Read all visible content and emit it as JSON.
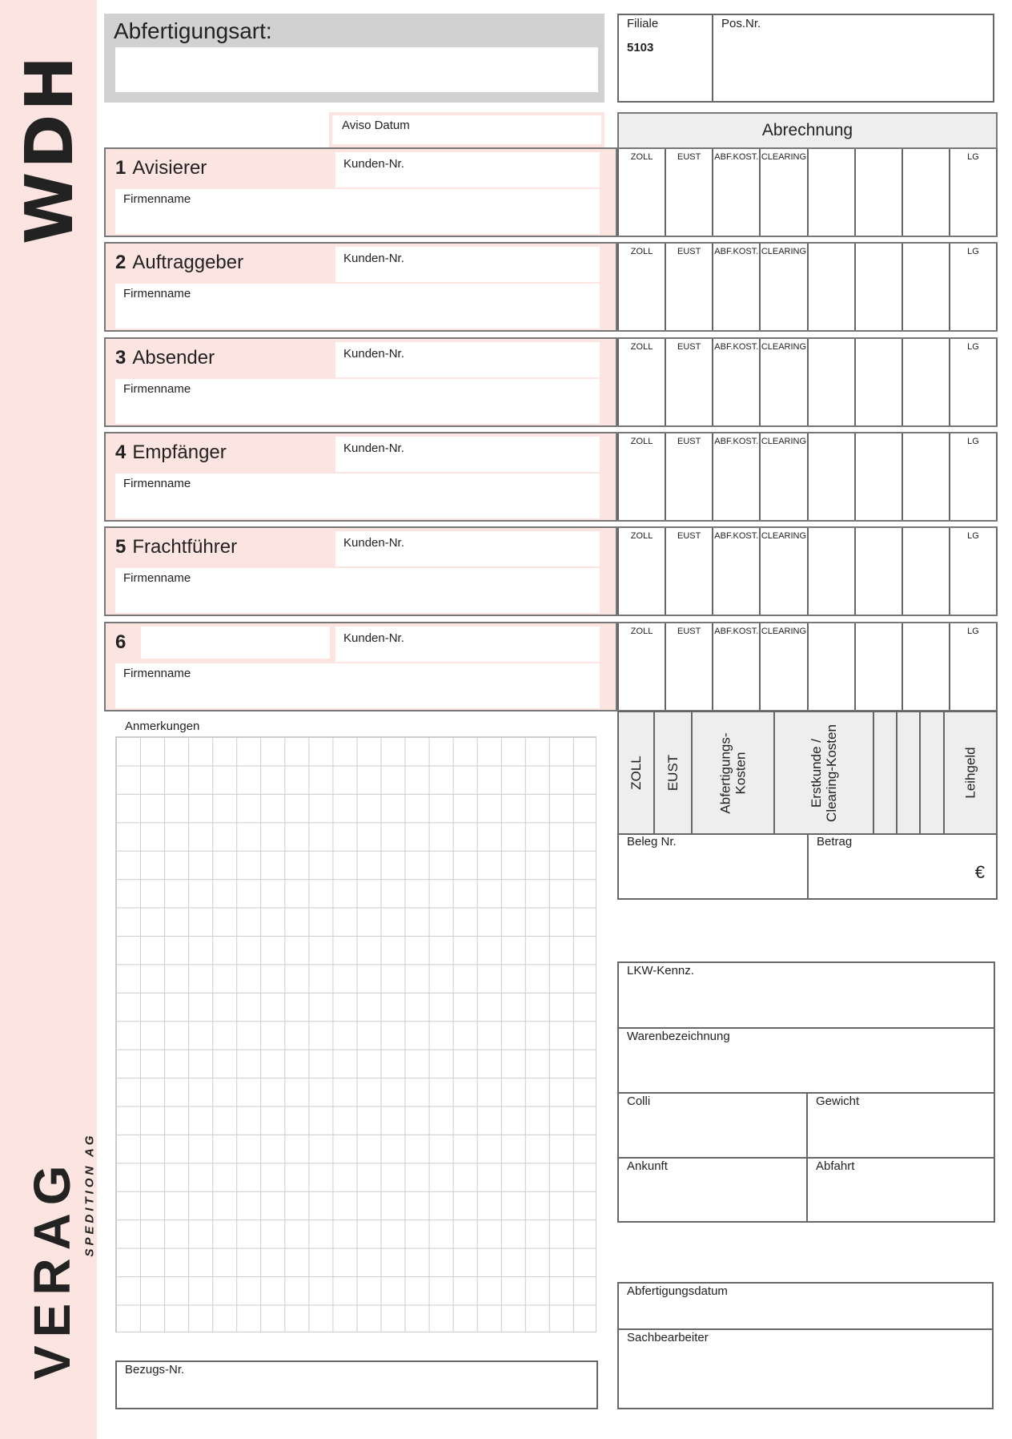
{
  "brand": {
    "code": "WDH",
    "logo_text": "VERAG",
    "logo_sub": "SPEDITION AG"
  },
  "header": {
    "abfertigungsart_label": "Abfertigungsart:",
    "abfertigungsart_value": "",
    "filiale_label": "Filiale",
    "filiale_value": "5103",
    "posnr_label": "Pos.Nr."
  },
  "aviso_label": "Aviso Datum",
  "abrechnung_title": "Abrechnung",
  "sections": [
    {
      "number": "1",
      "title": "Avisierer",
      "kunden_label": "Kunden-Nr.",
      "firmenname_label": "Firmenname"
    },
    {
      "number": "2",
      "title": "Auftraggeber",
      "kunden_label": "Kunden-Nr.",
      "firmenname_label": "Firmenname"
    },
    {
      "number": "3",
      "title": "Absender",
      "kunden_label": "Kunden-Nr.",
      "firmenname_label": "Firmenname"
    },
    {
      "number": "4",
      "title": "Empfänger",
      "kunden_label": "Kunden-Nr.",
      "firmenname_label": "Firmenname"
    },
    {
      "number": "5",
      "title": "Frachtführer",
      "kunden_label": "Kunden-Nr.",
      "firmenname_label": "Firmenname"
    },
    {
      "number": "6",
      "title": "",
      "kunden_label": "Kunden-Nr.",
      "firmenname_label": "Firmenname"
    }
  ],
  "cost_columns": [
    "ZOLL",
    "EUST",
    "ABF.KOST.",
    "CLEARING",
    "",
    "",
    "",
    "LG"
  ],
  "summary_columns": [
    "ZOLL",
    "EUST",
    "Abfertigungs-\nKosten",
    "Erstkunde /\nClearing-Kosten",
    "",
    "",
    "",
    "Leihgeld"
  ],
  "beleg_label": "Beleg Nr.",
  "betrag_label": "Betrag",
  "currency": "€",
  "anmerkungen_label": "Anmerkungen",
  "bezugs_label": "Bezugs-Nr.",
  "transport": {
    "lkw": "LKW-Kennz.",
    "ware": "Warenbezeichnung",
    "colli": "Colli",
    "gewicht": "Gewicht",
    "ankunft": "Ankunft",
    "abfahrt": "Abfahrt"
  },
  "footer": {
    "datum": "Abfertigungsdatum",
    "sachbearbeiter": "Sachbearbeiter"
  }
}
